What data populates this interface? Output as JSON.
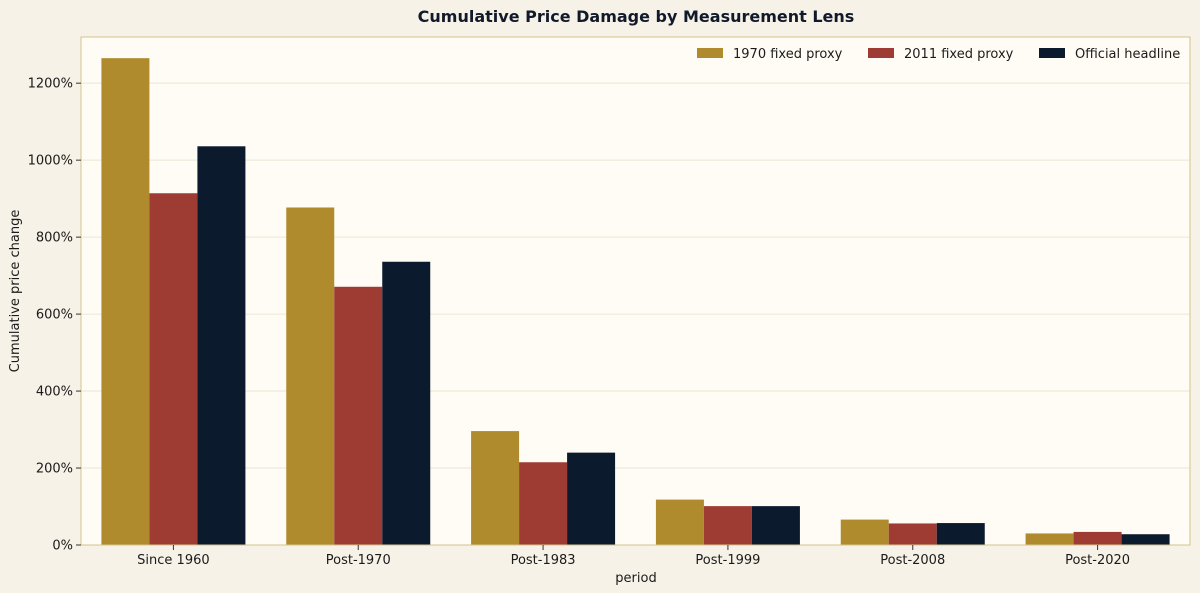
{
  "chart_data": {
    "type": "bar",
    "title": "Cumulative Price Damage by Measurement Lens",
    "xlabel": "period",
    "ylabel": "Cumulative price change",
    "ylim": [
      0,
      1320
    ],
    "yticks": [
      0,
      200,
      400,
      600,
      800,
      1000,
      1200
    ],
    "ytick_labels": [
      "0%",
      "200%",
      "400%",
      "600%",
      "800%",
      "1000%",
      "1200%"
    ],
    "grid": "horizontal",
    "legend_position": "top-right",
    "categories": [
      "Since 1960",
      "Post-1970",
      "Post-1983",
      "Post-1999",
      "Post-2008",
      "Post-2020"
    ],
    "series": [
      {
        "name": "1970 fixed proxy",
        "color": "#b08b2e",
        "values": [
          1265,
          877,
          296,
          118,
          66,
          30
        ]
      },
      {
        "name": "2011 fixed proxy",
        "color": "#9e3b32",
        "values": [
          914,
          671,
          215,
          101,
          56,
          34
        ]
      },
      {
        "name": "Official headline",
        "color": "#0c1a2e",
        "values": [
          1036,
          736,
          240,
          101,
          57,
          28
        ]
      }
    ],
    "colors": {
      "page_background": "#f6f2e7",
      "plot_background": "#fefcf4",
      "plot_border": "#d4c48c",
      "grid": "#ebe6d4"
    }
  }
}
